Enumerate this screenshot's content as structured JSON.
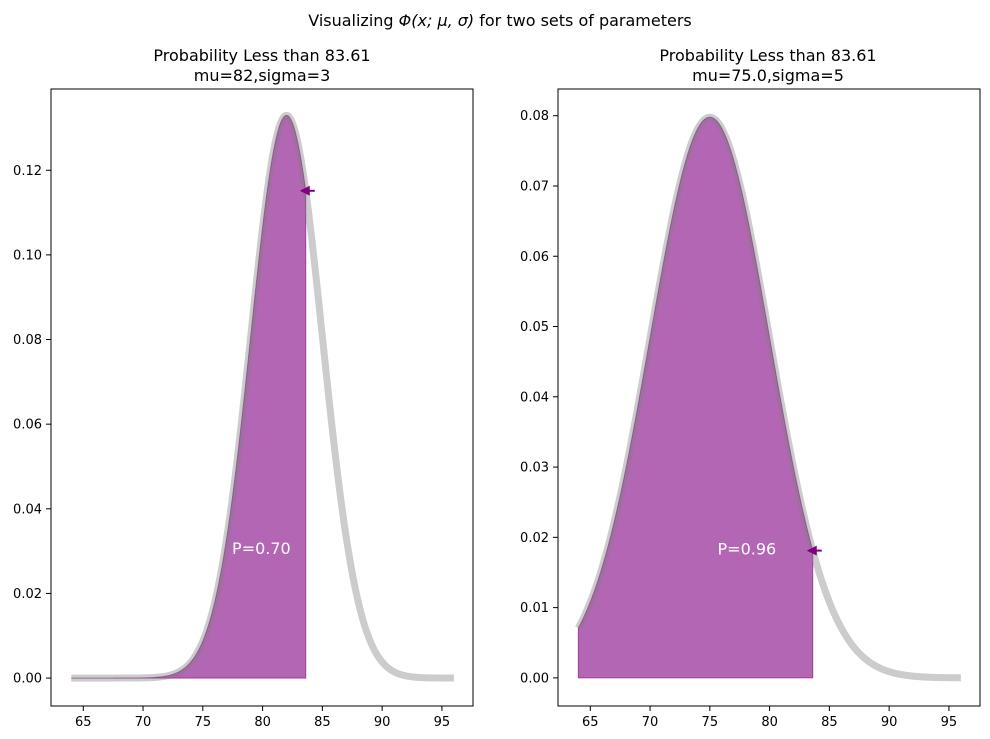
{
  "figure": {
    "suptitle_prefix": "Visualizing ",
    "suptitle_math": "Φ(x; μ, σ)",
    "suptitle_suffix": " for two sets of parameters"
  },
  "chart_data": [
    {
      "type": "area",
      "title": "Probability Less than 83.61",
      "subtitle": "mu=82,sigma=3",
      "mu": 82,
      "sigma": 3,
      "threshold": 83.61,
      "x_range": [
        64,
        96
      ],
      "xlim": [
        62.3,
        97.6
      ],
      "ylim": [
        -0.0066,
        0.1392
      ],
      "xticks": [
        65,
        70,
        75,
        80,
        85,
        90,
        95
      ],
      "yticks": [
        0.0,
        0.02,
        0.04,
        0.06,
        0.08,
        0.1,
        0.12
      ],
      "ytick_decimals": 2,
      "annotation": "P=0.70",
      "annotation_pos": [
        79.9,
        0.0305
      ],
      "probability": 0.7,
      "curve_color": "#cccccc",
      "fill_color": "#800080"
    },
    {
      "type": "area",
      "title": "Probability Less than 83.61",
      "subtitle": "mu=75.0,sigma=5",
      "mu": 75.0,
      "sigma": 5,
      "threshold": 83.61,
      "x_range": [
        64,
        96
      ],
      "xlim": [
        62.3,
        97.6
      ],
      "ylim": [
        -0.004,
        0.0838
      ],
      "xticks": [
        65,
        70,
        75,
        80,
        85,
        90,
        95
      ],
      "yticks": [
        0.0,
        0.01,
        0.02,
        0.03,
        0.04,
        0.05,
        0.06,
        0.07,
        0.08
      ],
      "ytick_decimals": 2,
      "annotation": "P=0.96",
      "annotation_pos": [
        78.1,
        0.0183
      ],
      "probability": 0.96,
      "curve_color": "#cccccc",
      "fill_color": "#800080"
    }
  ]
}
